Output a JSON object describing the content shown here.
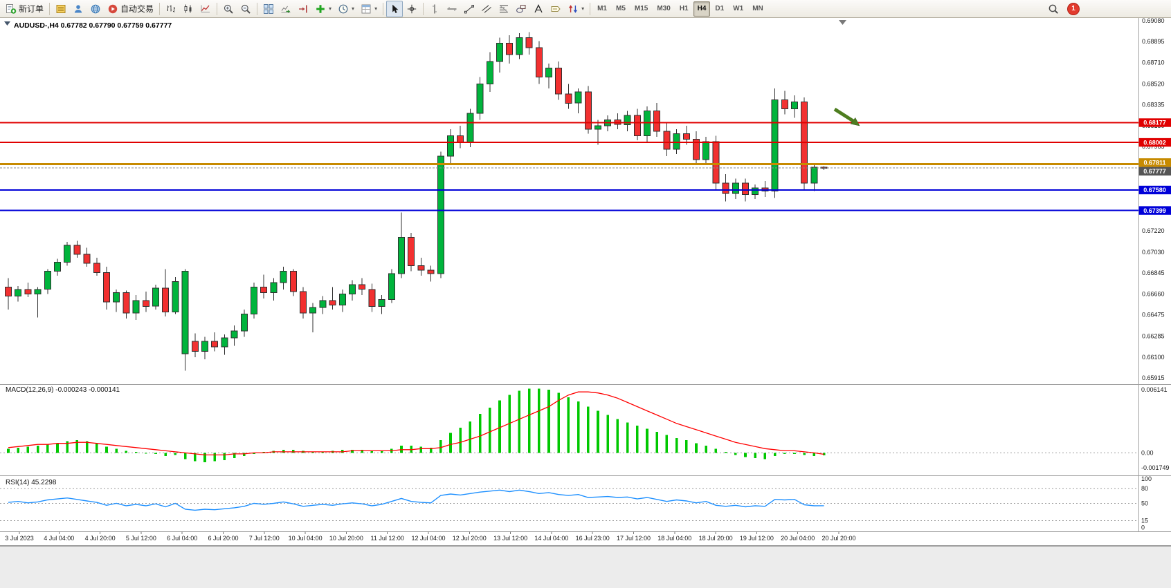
{
  "toolbar": {
    "items": [
      {
        "type": "button",
        "name": "new-order-button",
        "icon": "new-order",
        "label": "新订单"
      },
      {
        "type": "sep"
      },
      {
        "type": "button",
        "name": "depth-of-market-button",
        "icon": "dom"
      },
      {
        "type": "button",
        "name": "community-button",
        "icon": "person"
      },
      {
        "type": "button",
        "name": "website-button",
        "icon": "globe"
      },
      {
        "type": "button",
        "name": "auto-trading-button",
        "icon": "autotrade",
        "label": "自动交易"
      },
      {
        "type": "sep"
      },
      {
        "type": "button",
        "name": "bar-chart-button",
        "icon": "bars"
      },
      {
        "type": "button",
        "name": "candlestick-chart-button",
        "icon": "candles"
      },
      {
        "type": "button",
        "name": "line-chart-button",
        "icon": "linechart"
      },
      {
        "type": "sep"
      },
      {
        "type": "button",
        "name": "zoom-in-button",
        "icon": "zoom-in"
      },
      {
        "type": "button",
        "name": "zoom-out-button",
        "icon": "zoom-out"
      },
      {
        "type": "sep"
      },
      {
        "type": "button",
        "name": "tile-windows-button",
        "icon": "tile"
      },
      {
        "type": "button",
        "name": "auto-scroll-button",
        "icon": "autoscroll"
      },
      {
        "type": "button",
        "name": "chart-shift-button",
        "icon": "shift"
      },
      {
        "type": "button",
        "name": "indicators-button",
        "icon": "indicators",
        "dropdown": true
      },
      {
        "type": "button",
        "name": "periods-button",
        "icon": "clock",
        "dropdown": true
      },
      {
        "type": "button",
        "name": "templates-button",
        "icon": "template",
        "dropdown": true
      },
      {
        "type": "sep"
      },
      {
        "type": "button",
        "name": "cursor-button",
        "icon": "cursor",
        "active": true
      },
      {
        "type": "button",
        "name": "crosshair-button",
        "icon": "crosshair"
      },
      {
        "type": "sep"
      },
      {
        "type": "button",
        "name": "vertical-line-button",
        "icon": "vline"
      },
      {
        "type": "button",
        "name": "horizontal-line-button",
        "icon": "hline"
      },
      {
        "type": "button",
        "name": "trendline-button",
        "icon": "trend"
      },
      {
        "type": "button",
        "name": "equidistant-channel-button",
        "icon": "channel"
      },
      {
        "type": "button",
        "name": "fibonacci-button",
        "icon": "fibo"
      },
      {
        "type": "button",
        "name": "shapes-button",
        "icon": "shapes"
      },
      {
        "type": "button",
        "name": "text-button",
        "icon": "text"
      },
      {
        "type": "button",
        "name": "text-label-button",
        "icon": "label"
      },
      {
        "type": "button",
        "name": "arrows-button",
        "icon": "arrows",
        "dropdown": true
      },
      {
        "type": "sep"
      }
    ],
    "timeframes": [
      {
        "label": "M1"
      },
      {
        "label": "M5"
      },
      {
        "label": "M15"
      },
      {
        "label": "M30"
      },
      {
        "label": "H1"
      },
      {
        "label": "H4",
        "active": true
      },
      {
        "label": "D1"
      },
      {
        "label": "W1"
      },
      {
        "label": "MN"
      }
    ],
    "notification_count": "1"
  },
  "chart_data": {
    "type": "candlestick",
    "symbol": "AUDUSD-",
    "period": "H4",
    "header_ohlc": {
      "open": "0.67782",
      "high": "0.67790",
      "low": "0.67759",
      "close": "0.67777"
    },
    "price_axis": {
      "max": 0.6908,
      "min": 0.65915,
      "labels": [
        "0.69080",
        "0.68895",
        "0.68710",
        "0.68520",
        "0.68335",
        "0.68150",
        "0.67965",
        "0.67780",
        "0.67595",
        "0.67410",
        "0.67220",
        "0.67030",
        "0.66845",
        "0.66660",
        "0.66475",
        "0.66285",
        "0.66100",
        "0.65915"
      ]
    },
    "colors": {
      "up": "#00B43C",
      "down": "#F23030",
      "outline": "#2F2F2F",
      "resistance": "#E00000",
      "support": "#0000D8",
      "pivot": "#C78A00",
      "bid_badge": "#555555",
      "macd_hist": "#00C800",
      "macd_signal": "#FF0000",
      "rsi_line": "#1E90FF",
      "arrow": "#4E7E20"
    },
    "candles": [
      [
        0.6672,
        0.668,
        0.6652,
        0.6664
      ],
      [
        0.6664,
        0.6673,
        0.6659,
        0.667
      ],
      [
        0.667,
        0.6676,
        0.6663,
        0.6666
      ],
      [
        0.6666,
        0.6672,
        0.6645,
        0.667
      ],
      [
        0.667,
        0.6688,
        0.6666,
        0.6686
      ],
      [
        0.6686,
        0.6697,
        0.6682,
        0.6694
      ],
      [
        0.6694,
        0.6712,
        0.6691,
        0.6709
      ],
      [
        0.6709,
        0.6713,
        0.6698,
        0.6701
      ],
      [
        0.6701,
        0.6707,
        0.669,
        0.6693
      ],
      [
        0.6693,
        0.6698,
        0.6682,
        0.6685
      ],
      [
        0.6685,
        0.669,
        0.6652,
        0.6659
      ],
      [
        0.6659,
        0.667,
        0.665,
        0.6667
      ],
      [
        0.6667,
        0.6669,
        0.6644,
        0.6649
      ],
      [
        0.6649,
        0.6665,
        0.6643,
        0.666
      ],
      [
        0.666,
        0.6668,
        0.665,
        0.6655
      ],
      [
        0.6655,
        0.6674,
        0.6652,
        0.6671
      ],
      [
        0.6671,
        0.6688,
        0.6646,
        0.665
      ],
      [
        0.665,
        0.6681,
        0.6648,
        0.6677
      ],
      [
        0.6613,
        0.6688,
        0.6598,
        0.6686
      ],
      [
        0.6624,
        0.6631,
        0.661,
        0.6615
      ],
      [
        0.6615,
        0.6628,
        0.6608,
        0.6624
      ],
      [
        0.6624,
        0.6632,
        0.6615,
        0.6619
      ],
      [
        0.6619,
        0.663,
        0.6612,
        0.6627
      ],
      [
        0.6627,
        0.6638,
        0.662,
        0.6633
      ],
      [
        0.6633,
        0.6652,
        0.6628,
        0.6648
      ],
      [
        0.6648,
        0.6676,
        0.6644,
        0.6672
      ],
      [
        0.6672,
        0.6683,
        0.6662,
        0.6667
      ],
      [
        0.6667,
        0.668,
        0.666,
        0.6676
      ],
      [
        0.6676,
        0.669,
        0.667,
        0.6686
      ],
      [
        0.6686,
        0.6688,
        0.6664,
        0.6668
      ],
      [
        0.6668,
        0.6672,
        0.6644,
        0.6649
      ],
      [
        0.6649,
        0.6658,
        0.6632,
        0.6654
      ],
      [
        0.6654,
        0.6664,
        0.6648,
        0.666
      ],
      [
        0.666,
        0.6672,
        0.6652,
        0.6656
      ],
      [
        0.6656,
        0.667,
        0.665,
        0.6666
      ],
      [
        0.6666,
        0.6678,
        0.666,
        0.6674
      ],
      [
        0.6674,
        0.668,
        0.6665,
        0.667
      ],
      [
        0.667,
        0.6675,
        0.665,
        0.6655
      ],
      [
        0.6655,
        0.6665,
        0.6648,
        0.6661
      ],
      [
        0.6661,
        0.6688,
        0.6658,
        0.6684
      ],
      [
        0.6684,
        0.6738,
        0.668,
        0.6716
      ],
      [
        0.6716,
        0.672,
        0.6686,
        0.6691
      ],
      [
        0.6691,
        0.6698,
        0.6682,
        0.6687
      ],
      [
        0.6687,
        0.6691,
        0.6677,
        0.6684
      ],
      [
        0.6684,
        0.6792,
        0.668,
        0.6788
      ],
      [
        0.6788,
        0.6812,
        0.678,
        0.6806
      ],
      [
        0.6806,
        0.6815,
        0.6795,
        0.68
      ],
      [
        0.68,
        0.683,
        0.6796,
        0.6826
      ],
      [
        0.6826,
        0.6858,
        0.682,
        0.6852
      ],
      [
        0.6852,
        0.688,
        0.6845,
        0.6872
      ],
      [
        0.6872,
        0.6893,
        0.6862,
        0.6888
      ],
      [
        0.6888,
        0.6895,
        0.687,
        0.6878
      ],
      [
        0.6878,
        0.6897,
        0.6874,
        0.6893
      ],
      [
        0.6893,
        0.6898,
        0.6878,
        0.6884
      ],
      [
        0.6884,
        0.689,
        0.6852,
        0.6858
      ],
      [
        0.6858,
        0.687,
        0.6848,
        0.6866
      ],
      [
        0.6866,
        0.6872,
        0.6838,
        0.6843
      ],
      [
        0.6843,
        0.6852,
        0.683,
        0.6835
      ],
      [
        0.6835,
        0.6848,
        0.6826,
        0.6845
      ],
      [
        0.6845,
        0.685,
        0.6808,
        0.6812
      ],
      [
        0.6812,
        0.682,
        0.6798,
        0.6815
      ],
      [
        0.6815,
        0.6824,
        0.681,
        0.682
      ],
      [
        0.682,
        0.6826,
        0.6812,
        0.6816
      ],
      [
        0.6816,
        0.6828,
        0.681,
        0.6824
      ],
      [
        0.6824,
        0.683,
        0.6802,
        0.6806
      ],
      [
        0.6806,
        0.6832,
        0.68,
        0.6828
      ],
      [
        0.6828,
        0.6835,
        0.6805,
        0.681
      ],
      [
        0.681,
        0.6818,
        0.6788,
        0.6794
      ],
      [
        0.6794,
        0.6812,
        0.679,
        0.6808
      ],
      [
        0.6808,
        0.6815,
        0.6798,
        0.6803
      ],
      [
        0.6803,
        0.681,
        0.678,
        0.6785
      ],
      [
        0.6785,
        0.6805,
        0.6782,
        0.6801
      ],
      [
        0.6801,
        0.6806,
        0.6758,
        0.6764
      ],
      [
        0.6764,
        0.6772,
        0.6748,
        0.6755
      ],
      [
        0.6755,
        0.6768,
        0.675,
        0.6764
      ],
      [
        0.6764,
        0.6768,
        0.6748,
        0.6754
      ],
      [
        0.6754,
        0.6763,
        0.675,
        0.676
      ],
      [
        0.676,
        0.6766,
        0.6752,
        0.6757
      ],
      [
        0.6757,
        0.6848,
        0.6751,
        0.6838
      ],
      [
        0.6838,
        0.6846,
        0.6825,
        0.683
      ],
      [
        0.683,
        0.6842,
        0.6822,
        0.6836
      ],
      [
        0.6836,
        0.684,
        0.6758,
        0.6764
      ],
      [
        0.6764,
        0.678,
        0.6757,
        0.67782
      ],
      [
        0.67782,
        0.6779,
        0.67759,
        0.67777
      ]
    ],
    "hlines": [
      {
        "name": "resistance-line-1",
        "price": 0.68177,
        "label": "0.68177",
        "color_key": "resistance",
        "width": 2
      },
      {
        "name": "resistance-line-2",
        "price": 0.68002,
        "label": "0.68002",
        "color_key": "resistance",
        "width": 2
      },
      {
        "name": "pivot-line",
        "price": 0.67811,
        "label": "0.67811",
        "color_key": "pivot",
        "width": 3
      },
      {
        "name": "support-line-1",
        "price": 0.6758,
        "label": "0.67580",
        "color_key": "support",
        "width": 2
      },
      {
        "name": "support-line-2",
        "price": 0.67399,
        "label": "0.67399",
        "color_key": "support",
        "width": 2
      }
    ],
    "bid": {
      "price": 0.67777,
      "label": "0.67777"
    },
    "arrow_annotation": {
      "desc": "green down-right arrow near 0.68177 resistance"
    },
    "time_labels": [
      "3 Jul 2023",
      "4 Jul 04:00",
      "4 Jul 20:00",
      "5 Jul 12:00",
      "6 Jul 04:00",
      "6 Jul 20:00",
      "7 Jul 12:00",
      "10 Jul 04:00",
      "10 Jul 20:00",
      "11 Jul 12:00",
      "12 Jul 04:00",
      "12 Jul 20:00",
      "13 Jul 12:00",
      "14 Jul 04:00",
      "16 Jul 23:00",
      "17 Jul 12:00",
      "18 Jul 04:00",
      "18 Jul 20:00",
      "19 Jul 12:00",
      "20 Jul 04:00",
      "20 Jul 20:00"
    ],
    "macd": {
      "title": "MACD(12,26,9)",
      "value_main": "-0.000243",
      "value_signal": "-0.000141",
      "axis_max": "0.006141",
      "axis_zero": "0.00",
      "axis_min": "-0.001749",
      "max": 0.006141,
      "min": -0.001749,
      "histogram": [
        0.0004,
        0.0005,
        0.0006,
        0.0007,
        0.0008,
        0.0009,
        0.0011,
        0.0012,
        0.0011,
        0.0009,
        0.0006,
        0.0004,
        0.0002,
        0.0001,
        0.0,
        -0.0001,
        -0.0003,
        -0.0002,
        -0.0006,
        -0.0008,
        -0.0009,
        -0.0008,
        -0.0007,
        -0.0005,
        -0.0003,
        -0.0001,
        0.0001,
        0.0002,
        0.0003,
        0.0003,
        0.0002,
        0.0001,
        0.0001,
        0.0002,
        0.0003,
        0.0003,
        0.0003,
        0.0002,
        0.0002,
        0.0004,
        0.0007,
        0.0007,
        0.0006,
        0.0005,
        0.0012,
        0.0019,
        0.0024,
        0.003,
        0.0037,
        0.0043,
        0.005,
        0.0055,
        0.0059,
        0.0061,
        0.0061,
        0.006,
        0.0057,
        0.0053,
        0.0049,
        0.0044,
        0.004,
        0.0036,
        0.0032,
        0.0029,
        0.0026,
        0.0023,
        0.002,
        0.0017,
        0.0014,
        0.0012,
        0.0009,
        0.0007,
        0.0004,
        0.0001,
        -0.0002,
        -0.0004,
        -0.0005,
        -0.0006,
        -0.0003,
        -0.0001,
        -0.0001,
        -0.0002,
        -0.0003,
        -0.000243
      ],
      "signal": [
        0.0005,
        0.0006,
        0.0007,
        0.0008,
        0.0008,
        0.0009,
        0.0009,
        0.001,
        0.001,
        0.0009,
        0.0008,
        0.0007,
        0.0006,
        0.0005,
        0.0004,
        0.0003,
        0.0002,
        0.0001,
        0.0,
        -0.0001,
        -0.0002,
        -0.0002,
        -0.0002,
        -0.0001,
        -0.0001,
        0.0,
        0.0,
        0.0001,
        0.0001,
        0.0001,
        0.0001,
        0.0001,
        0.0001,
        0.0001,
        0.0001,
        0.0002,
        0.0002,
        0.0002,
        0.0002,
        0.0002,
        0.0003,
        0.0003,
        0.0004,
        0.0004,
        0.0005,
        0.0008,
        0.001,
        0.0013,
        0.0016,
        0.002,
        0.0024,
        0.0028,
        0.0032,
        0.0036,
        0.004,
        0.0044,
        0.005,
        0.0055,
        0.0058,
        0.0058,
        0.0057,
        0.0055,
        0.0052,
        0.0048,
        0.0044,
        0.004,
        0.0036,
        0.0032,
        0.0028,
        0.0025,
        0.0022,
        0.0019,
        0.0016,
        0.0013,
        0.001,
        0.0008,
        0.0006,
        0.0004,
        0.0003,
        0.0002,
        0.0002,
        0.0001,
        0.0,
        -0.000141
      ]
    },
    "rsi": {
      "title": "RSI(14)",
      "value": "45.2298",
      "levels": [
        80,
        50,
        15
      ],
      "axis_labels": [
        "100",
        "80",
        "50",
        "15",
        "0"
      ],
      "series": [
        52,
        54,
        51,
        53,
        57,
        59,
        61,
        58,
        55,
        52,
        46,
        50,
        45,
        48,
        45,
        49,
        43,
        50,
        38,
        36,
        38,
        37,
        39,
        41,
        44,
        50,
        48,
        50,
        53,
        49,
        44,
        46,
        48,
        46,
        49,
        51,
        49,
        45,
        48,
        54,
        60,
        54,
        52,
        51,
        66,
        69,
        67,
        70,
        73,
        75,
        77,
        74,
        77,
        74,
        70,
        72,
        68,
        66,
        68,
        62,
        63,
        64,
        62,
        63,
        59,
        62,
        58,
        54,
        57,
        55,
        51,
        54,
        46,
        44,
        46,
        43,
        45,
        44,
        58,
        57,
        58,
        47,
        45,
        45.2298
      ]
    }
  }
}
